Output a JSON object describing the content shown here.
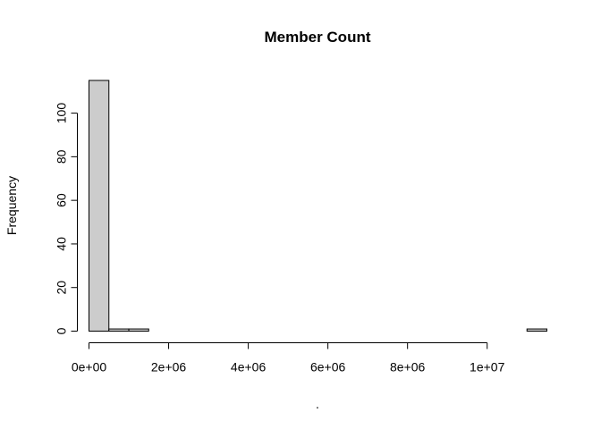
{
  "chart_data": {
    "type": "bar",
    "title": "Member Count",
    "xlabel": ".",
    "ylabel": "Frequency",
    "bin_width": 500000,
    "bins": [
      {
        "start": 0,
        "end": 500000,
        "count": 115
      },
      {
        "start": 500000,
        "end": 1000000,
        "count": 1
      },
      {
        "start": 1000000,
        "end": 1500000,
        "count": 1
      },
      {
        "start": 1500000,
        "end": 2000000,
        "count": 0
      },
      {
        "start": 2000000,
        "end": 2500000,
        "count": 0
      },
      {
        "start": 2500000,
        "end": 3000000,
        "count": 0
      },
      {
        "start": 3000000,
        "end": 3500000,
        "count": 0
      },
      {
        "start": 3500000,
        "end": 4000000,
        "count": 0
      },
      {
        "start": 4000000,
        "end": 4500000,
        "count": 0
      },
      {
        "start": 4500000,
        "end": 5000000,
        "count": 0
      },
      {
        "start": 5000000,
        "end": 5500000,
        "count": 0
      },
      {
        "start": 5500000,
        "end": 6000000,
        "count": 0
      },
      {
        "start": 6000000,
        "end": 6500000,
        "count": 0
      },
      {
        "start": 6500000,
        "end": 7000000,
        "count": 0
      },
      {
        "start": 7000000,
        "end": 7500000,
        "count": 0
      },
      {
        "start": 7500000,
        "end": 8000000,
        "count": 0
      },
      {
        "start": 8000000,
        "end": 8500000,
        "count": 0
      },
      {
        "start": 8500000,
        "end": 9000000,
        "count": 0
      },
      {
        "start": 9000000,
        "end": 9500000,
        "count": 0
      },
      {
        "start": 9500000,
        "end": 10000000,
        "count": 0
      },
      {
        "start": 10000000,
        "end": 10500000,
        "count": 0
      },
      {
        "start": 10500000,
        "end": 11000000,
        "count": 0
      },
      {
        "start": 11000000,
        "end": 11500000,
        "count": 1
      }
    ],
    "xlim": [
      0,
      11500000
    ],
    "ylim": [
      0,
      115
    ],
    "x_ticks": [
      {
        "value": 0,
        "label": "0e+00"
      },
      {
        "value": 2000000,
        "label": "2e+06"
      },
      {
        "value": 4000000,
        "label": "4e+06"
      },
      {
        "value": 6000000,
        "label": "6e+06"
      },
      {
        "value": 8000000,
        "label": "8e+06"
      },
      {
        "value": 10000000,
        "label": "1e+07"
      }
    ],
    "y_ticks": [
      {
        "value": 0,
        "label": "0"
      },
      {
        "value": 20,
        "label": "20"
      },
      {
        "value": 40,
        "label": "40"
      },
      {
        "value": 60,
        "label": "60"
      },
      {
        "value": 80,
        "label": "80"
      },
      {
        "value": 100,
        "label": "100"
      }
    ],
    "grid": false,
    "legend": "none",
    "bar_fill": "#cccccc",
    "bar_stroke": "#000000"
  }
}
